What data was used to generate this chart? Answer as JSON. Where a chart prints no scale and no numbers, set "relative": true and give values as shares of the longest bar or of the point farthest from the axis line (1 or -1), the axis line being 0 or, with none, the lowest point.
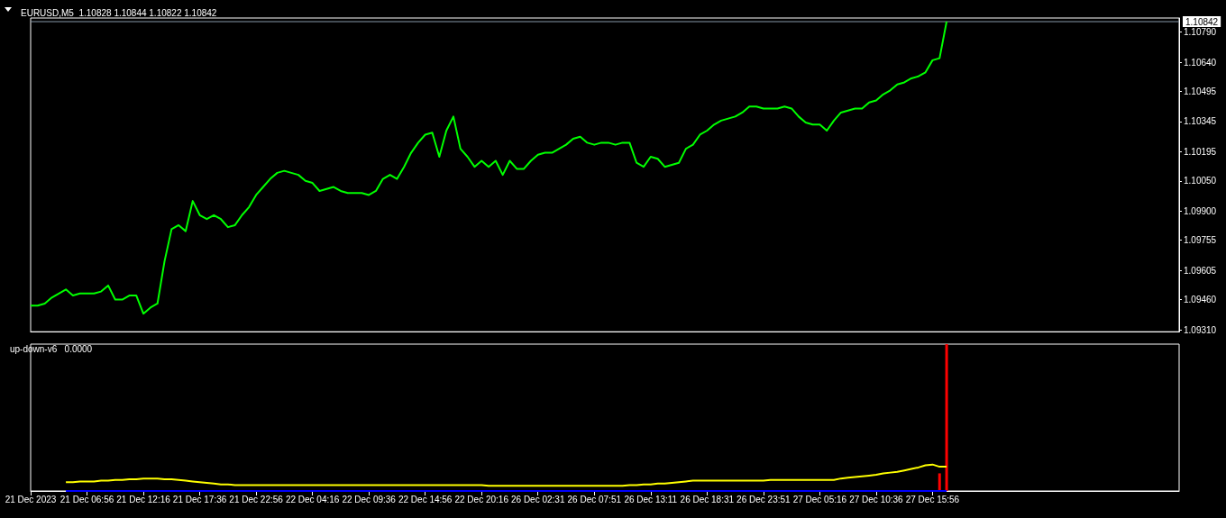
{
  "chart_data": [
    {
      "type": "line",
      "title": "EURUSD,M5  1.10828 1.10844 1.10822 1.10842",
      "categories": [
        null,
        null,
        null,
        null,
        null,
        null,
        null,
        null,
        null,
        null,
        null,
        null,
        null,
        null,
        null,
        null,
        null,
        null,
        null,
        null,
        null,
        null,
        null,
        null,
        null,
        null,
        null,
        null,
        null,
        null,
        null,
        null,
        null,
        null,
        null,
        null,
        null,
        null,
        null,
        null,
        null,
        null,
        null,
        null,
        null,
        null,
        null,
        null,
        null,
        null,
        null,
        null,
        null,
        null,
        null,
        null,
        null,
        null,
        null,
        null,
        null,
        null,
        null,
        null,
        null,
        null,
        null,
        null,
        null,
        null,
        null,
        null,
        null,
        null,
        null,
        null,
        null,
        null,
        null,
        null,
        null,
        null,
        null,
        null,
        null,
        null,
        null,
        null,
        null,
        null,
        null,
        null,
        null,
        null,
        null,
        null,
        null,
        null,
        null,
        null,
        null,
        null,
        null,
        null,
        null,
        null,
        null,
        null,
        null,
        null,
        null,
        null,
        null,
        null,
        null,
        null,
        null,
        null,
        null,
        null,
        null,
        null,
        null,
        null,
        null,
        null,
        null,
        null,
        null,
        null,
        null,
        null,
        null,
        null,
        null,
        null,
        null,
        null,
        null,
        null,
        null,
        null,
        null,
        null,
        null,
        null,
        null,
        null,
        null,
        null,
        null,
        null,
        null,
        null,
        null,
        null,
        null,
        null,
        null,
        null,
        null,
        null,
        null,
        null
      ],
      "series": [
        {
          "color": "#00ff00",
          "values": [
            1.0943,
            1.0943,
            1.0944,
            1.0947,
            1.0949,
            1.0951,
            1.0948,
            1.0949,
            1.0949,
            1.0949,
            1.095,
            1.0953,
            1.0946,
            1.0946,
            1.0948,
            1.0948,
            1.0939,
            1.0942,
            1.0944,
            1.0965,
            1.0981,
            1.0983,
            1.098,
            1.0995,
            1.0988,
            1.0986,
            1.0988,
            1.0986,
            1.0982,
            1.0983,
            1.0988,
            1.0992,
            1.0998,
            1.1002,
            1.1006,
            1.1009,
            1.101,
            1.1009,
            1.1008,
            1.1005,
            1.1004,
            1.1,
            1.1001,
            1.1002,
            1.1,
            1.0999,
            1.0999,
            1.0999,
            1.0998,
            1.1,
            1.1006,
            1.1008,
            1.1006,
            1.1012,
            1.1019,
            1.1024,
            1.1028,
            1.1029,
            1.1017,
            1.103,
            1.1037,
            1.1021,
            1.1017,
            1.1012,
            1.1015,
            1.1012,
            1.1015,
            1.1008,
            1.1015,
            1.1011,
            1.1011,
            1.1015,
            1.1018,
            1.1019,
            1.1019,
            1.1021,
            1.1023,
            1.1026,
            1.1027,
            1.1024,
            1.1023,
            1.1024,
            1.1024,
            1.1023,
            1.1024,
            1.1024,
            1.1014,
            1.1012,
            1.1017,
            1.1016,
            1.1012,
            1.1013,
            1.1014,
            1.1021,
            1.1023,
            1.1028,
            1.103,
            1.1033,
            1.1035,
            1.1036,
            1.1037,
            1.1039,
            1.1042,
            1.1042,
            1.1041,
            1.1041,
            1.1041,
            1.1042,
            1.1041,
            1.1037,
            1.1034,
            1.1033,
            1.1033,
            1.103,
            1.1035,
            1.1039,
            1.104,
            1.1041,
            1.1041,
            1.1044,
            1.1045,
            1.1048,
            1.105,
            1.1053,
            1.1054,
            1.1056,
            1.1057,
            1.1059,
            1.1065,
            1.1066,
            1.10842,
            null,
            null,
            null,
            null,
            null,
            null,
            null,
            null,
            null,
            null,
            null,
            null,
            null,
            null,
            null,
            null,
            null,
            null,
            null,
            null,
            null,
            null,
            null,
            null,
            null,
            null,
            null,
            null,
            null,
            null,
            null,
            null,
            null
          ]
        }
      ],
      "ylim": [
        1.093,
        1.1086
      ],
      "yticks": [
        {
          "value": 1.0931,
          "label": "1.09310"
        },
        {
          "value": 1.0946,
          "label": "1.09460"
        },
        {
          "value": 1.09605,
          "label": "1.09605"
        },
        {
          "value": 1.09755,
          "label": "1.09755"
        },
        {
          "value": 1.099,
          "label": "1.09900"
        },
        {
          "value": 1.1005,
          "label": "1.10050"
        },
        {
          "value": 1.10195,
          "label": "1.10195"
        },
        {
          "value": 1.10345,
          "label": "1.10345"
        },
        {
          "value": 1.10495,
          "label": "1.10495"
        },
        {
          "value": 1.1064,
          "label": "1.10640"
        },
        {
          "value": 1.1079,
          "label": "1.10790"
        }
      ],
      "ref_lines": [
        {
          "axis": "y",
          "value": 1.10842,
          "label": "1.10842",
          "color": "#8899aa"
        }
      ],
      "tick_labels": "y",
      "grid": false
    },
    {
      "type": "line",
      "title": "up-down-v6   0.0000",
      "relative": true,
      "categories": [
        "21 Dec 2023",
        null,
        null,
        null,
        null,
        null,
        null,
        null,
        "21 Dec 06:56",
        null,
        null,
        null,
        null,
        null,
        null,
        null,
        "21 Dec 12:16",
        null,
        null,
        null,
        null,
        null,
        null,
        null,
        "21 Dec 17:36",
        null,
        null,
        null,
        null,
        null,
        null,
        null,
        "21 Dec 22:56",
        null,
        null,
        null,
        null,
        null,
        null,
        null,
        "22 Dec 04:16",
        null,
        null,
        null,
        null,
        null,
        null,
        null,
        "22 Dec 09:36",
        null,
        null,
        null,
        null,
        null,
        null,
        null,
        "22 Dec 14:56",
        null,
        null,
        null,
        null,
        null,
        null,
        null,
        "22 Dec 20:16",
        null,
        null,
        null,
        null,
        null,
        null,
        null,
        "26 Dec 02:31",
        null,
        null,
        null,
        null,
        null,
        null,
        null,
        "26 Dec 07:51",
        null,
        null,
        null,
        null,
        null,
        null,
        null,
        "26 Dec 13:11",
        null,
        null,
        null,
        null,
        null,
        null,
        null,
        "26 Dec 18:31",
        null,
        null,
        null,
        null,
        null,
        null,
        null,
        "26 Dec 23:51",
        null,
        null,
        null,
        null,
        null,
        null,
        null,
        "27 Dec 05:16",
        null,
        null,
        null,
        null,
        null,
        null,
        null,
        "27 Dec 10:36",
        null,
        null,
        null,
        null,
        null,
        null,
        null,
        "27 Dec 15:56",
        null,
        null,
        null,
        null,
        null,
        null,
        null,
        null,
        null,
        null,
        null,
        null,
        null,
        null,
        null,
        null,
        null,
        null,
        null,
        null,
        null,
        null,
        null,
        null,
        null,
        null,
        null,
        null,
        null,
        null,
        null,
        null,
        null,
        null,
        null
      ],
      "series": [
        {
          "color": "#ffff00",
          "values": [
            null,
            null,
            null,
            null,
            null,
            0.06,
            0.06,
            0.065,
            0.065,
            0.065,
            0.07,
            0.07,
            0.075,
            0.075,
            0.08,
            0.08,
            0.085,
            0.085,
            0.085,
            0.08,
            0.08,
            0.075,
            0.07,
            0.065,
            0.06,
            0.055,
            0.05,
            0.045,
            0.045,
            0.04,
            0.04,
            0.04,
            0.04,
            0.04,
            0.04,
            0.04,
            0.04,
            0.04,
            0.04,
            0.04,
            0.04,
            0.04,
            0.04,
            0.04,
            0.04,
            0.04,
            0.04,
            0.04,
            0.04,
            0.04,
            0.04,
            0.04,
            0.04,
            0.04,
            0.04,
            0.04,
            0.04,
            0.04,
            0.04,
            0.04,
            0.04,
            0.04,
            0.04,
            0.04,
            0.04,
            0.035,
            0.035,
            0.035,
            0.035,
            0.035,
            0.035,
            0.035,
            0.035,
            0.035,
            0.035,
            0.035,
            0.035,
            0.035,
            0.035,
            0.035,
            0.035,
            0.035,
            0.035,
            0.035,
            0.035,
            0.04,
            0.04,
            0.045,
            0.045,
            0.05,
            0.05,
            0.055,
            0.06,
            0.065,
            0.07,
            0.07,
            0.07,
            0.07,
            0.07,
            0.07,
            0.07,
            0.07,
            0.07,
            0.07,
            0.07,
            0.075,
            0.075,
            0.075,
            0.075,
            0.075,
            0.075,
            0.075,
            0.075,
            0.075,
            0.075,
            0.085,
            0.09,
            0.095,
            0.1,
            0.105,
            0.11,
            0.12,
            0.125,
            0.13,
            0.14,
            0.15,
            0.16,
            0.175,
            0.18,
            0.165,
            0.165,
            null,
            null,
            null,
            null,
            null,
            null,
            null,
            null,
            null,
            null,
            null,
            null,
            null,
            null,
            null,
            null,
            null,
            null,
            null,
            null,
            null,
            null,
            null,
            null,
            null,
            null,
            null,
            null,
            null,
            null,
            null,
            null,
            null
          ]
        },
        {
          "color": "#0000ff",
          "values": [
            null,
            null,
            null,
            null,
            null,
            0,
            0,
            0,
            0,
            0,
            0,
            0,
            0,
            0,
            0,
            0,
            0,
            0,
            0,
            0,
            0,
            0,
            0,
            0,
            0,
            0,
            0,
            0,
            0,
            0,
            0,
            0,
            0,
            0,
            0,
            0,
            0,
            0,
            0,
            0,
            0,
            0,
            0,
            0,
            0,
            0,
            0,
            0,
            0,
            0,
            0,
            0,
            0,
            0,
            0,
            0,
            0,
            0,
            0,
            0,
            0,
            0,
            0,
            0,
            0,
            0,
            0,
            0,
            0,
            0,
            0,
            0,
            0,
            0,
            0,
            0,
            0,
            0,
            0,
            0,
            0,
            0,
            0,
            0,
            0,
            0,
            0,
            0,
            0,
            0,
            0,
            0,
            0,
            0,
            0,
            0,
            0,
            0,
            0,
            0,
            0,
            0,
            0,
            0,
            0,
            0,
            0,
            0,
            0,
            0,
            0,
            0,
            0,
            0,
            0,
            0,
            0,
            0,
            0,
            0,
            0,
            0,
            0,
            0,
            0,
            0,
            0,
            0,
            0,
            0,
            0,
            null,
            null,
            null,
            null,
            null,
            null,
            null,
            null,
            null,
            null,
            null,
            null,
            null,
            null,
            null,
            null,
            null,
            null,
            null,
            null,
            null,
            null,
            null,
            null,
            null,
            null,
            null,
            null,
            null,
            null,
            null,
            null,
            null
          ]
        },
        {
          "type": "bar",
          "color": "#ff0000",
          "values": [
            null,
            null,
            null,
            null,
            null,
            null,
            null,
            null,
            null,
            null,
            null,
            null,
            null,
            null,
            null,
            null,
            null,
            null,
            null,
            null,
            null,
            null,
            null,
            null,
            null,
            null,
            null,
            null,
            null,
            null,
            null,
            null,
            null,
            null,
            null,
            null,
            null,
            null,
            null,
            null,
            null,
            null,
            null,
            null,
            null,
            null,
            null,
            null,
            null,
            null,
            null,
            null,
            null,
            null,
            null,
            null,
            null,
            null,
            null,
            null,
            null,
            null,
            null,
            null,
            null,
            null,
            null,
            null,
            null,
            null,
            null,
            null,
            null,
            null,
            null,
            null,
            null,
            null,
            null,
            null,
            null,
            null,
            null,
            null,
            null,
            null,
            null,
            null,
            null,
            null,
            null,
            null,
            null,
            null,
            null,
            null,
            null,
            null,
            null,
            null,
            null,
            null,
            null,
            null,
            null,
            null,
            null,
            null,
            null,
            null,
            null,
            null,
            null,
            null,
            null,
            null,
            null,
            null,
            null,
            null,
            null,
            null,
            null,
            null,
            null,
            null,
            null,
            null,
            null,
            0.12,
            1,
            null,
            null,
            null,
            null,
            null,
            null,
            null,
            null,
            null,
            null,
            null,
            null,
            null,
            null,
            null,
            null,
            null,
            null,
            null,
            null,
            null,
            null,
            null,
            null,
            null,
            null,
            null,
            null,
            null,
            null,
            null,
            null,
            null
          ]
        }
      ],
      "tick_labels": "x",
      "grid": false
    }
  ]
}
